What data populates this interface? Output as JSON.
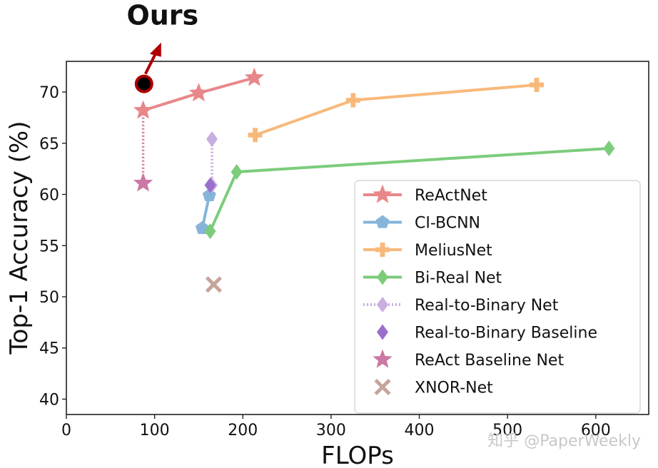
{
  "chart_data": {
    "type": "line",
    "title": "",
    "xlabel": "FLOPs",
    "ylabel": "Top-1 Accuracy (%)",
    "xlim": [
      0,
      660
    ],
    "ylim": [
      38.5,
      73
    ],
    "xticks": [
      0,
      100,
      200,
      300,
      400,
      500,
      600
    ],
    "yticks": [
      40,
      45,
      50,
      55,
      60,
      65,
      70
    ],
    "grid": false,
    "legend_position": "lower-right",
    "series": [
      {
        "name": "ReActNet",
        "color": "#e8878a",
        "marker": "star",
        "line": "solid",
        "x": [
          87,
          150,
          213
        ],
        "y": [
          68.2,
          69.9,
          71.4
        ]
      },
      {
        "name": "CI-BCNN",
        "color": "#86b5d9",
        "marker": "pentagon",
        "line": "solid",
        "x": [
          154,
          162
        ],
        "y": [
          56.7,
          59.9
        ]
      },
      {
        "name": "MeliusNet",
        "color": "#f7b97a",
        "marker": "plus",
        "line": "solid",
        "x": [
          214,
          325,
          533
        ],
        "y": [
          65.8,
          69.2,
          70.7
        ]
      },
      {
        "name": "Bi-Real Net",
        "color": "#7ccc7c",
        "marker": "diamond",
        "line": "solid",
        "x": [
          163,
          193,
          615
        ],
        "y": [
          56.4,
          62.2,
          64.5
        ]
      },
      {
        "name": "Real-to-Binary Net",
        "color": "#c9aee0",
        "marker": "diamond",
        "line": "dotted",
        "x": [
          165,
          165
        ],
        "y": [
          60.9,
          65.4
        ]
      },
      {
        "name": "Real-to-Binary Baseline",
        "color": "#9b6fcc",
        "marker": "diamond",
        "line": "none",
        "x": [
          163
        ],
        "y": [
          60.9
        ]
      },
      {
        "name": "ReAct Baseline Net",
        "color": "#cc78a4",
        "marker": "star",
        "line": "none",
        "x": [
          87
        ],
        "y": [
          61.1
        ]
      },
      {
        "name": "XNOR-Net",
        "color": "#c5a49a",
        "marker": "x",
        "line": "none",
        "x": [
          167
        ],
        "y": [
          51.2
        ]
      }
    ],
    "connectors": [
      {
        "color": "#cc78a4",
        "x": [
          87,
          87
        ],
        "y": [
          61.1,
          68.2
        ]
      }
    ],
    "annotation": {
      "text": "Ours",
      "x": 88,
      "y": 70.8,
      "color": "#b00000"
    }
  },
  "watermark": "知乎 @PaperWeekly"
}
